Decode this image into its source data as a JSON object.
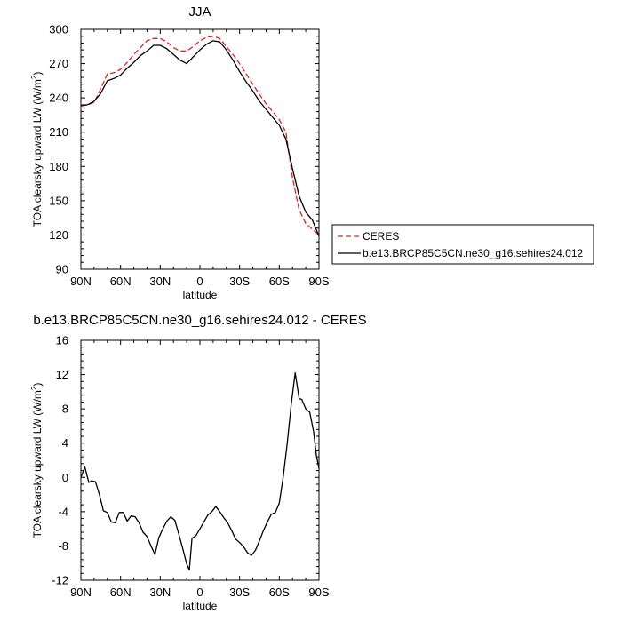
{
  "chart_data": [
    {
      "type": "line",
      "title": "JJA",
      "xlabel": "latitude",
      "ylabel": "TOA clearsky upward LW (W/m²)",
      "ylabel_parts": {
        "main": "TOA clearsky upward LW (W/m",
        "sup": "2",
        "close": ")"
      },
      "xlim": [
        -90,
        90
      ],
      "ylim": [
        90,
        300
      ],
      "xtick_values": [
        -90,
        -60,
        -30,
        0,
        30,
        60,
        90
      ],
      "xtick_labels": [
        "90N",
        "60N",
        "30N",
        "0",
        "30S",
        "60S",
        "90S"
      ],
      "ytick_values": [
        90,
        120,
        150,
        180,
        210,
        240,
        270,
        300
      ],
      "ytick_labels": [
        "90",
        "120",
        "150",
        "180",
        "210",
        "240",
        "270",
        "300"
      ],
      "grid": false,
      "legend_position": "right",
      "series": [
        {
          "name": "CERES",
          "color": "#e02020",
          "dash": "dashed",
          "x": [
            -90,
            -85,
            -80,
            -75,
            -70,
            -65,
            -60,
            -55,
            -50,
            -45,
            -40,
            -35,
            -30,
            -25,
            -20,
            -15,
            -10,
            -5,
            0,
            5,
            10,
            15,
            20,
            25,
            30,
            35,
            40,
            45,
            50,
            55,
            60,
            65,
            70,
            75,
            80,
            85,
            90
          ],
          "y": [
            234,
            234,
            236,
            248,
            261,
            262,
            265,
            271,
            278,
            284,
            290,
            292,
            292,
            289,
            284,
            281,
            281,
            285,
            290,
            293,
            294,
            292,
            285,
            278,
            270,
            261,
            252,
            243,
            235,
            228,
            221,
            210,
            170,
            142,
            130,
            125,
            120
          ]
        },
        {
          "name": "b.e13.BRCP85C5CN.ne30_g16.sehires24.012",
          "color": "#000000",
          "dash": "solid",
          "x": [
            -90,
            -85,
            -80,
            -75,
            -70,
            -65,
            -60,
            -55,
            -50,
            -45,
            -40,
            -35,
            -30,
            -25,
            -20,
            -15,
            -10,
            -5,
            0,
            5,
            10,
            15,
            20,
            25,
            30,
            35,
            40,
            45,
            50,
            55,
            60,
            65,
            70,
            75,
            80,
            85,
            90
          ],
          "y": [
            233,
            234,
            237,
            244,
            255,
            257,
            260,
            266,
            271,
            277,
            281,
            286,
            286,
            283,
            278,
            273,
            270,
            276,
            282,
            287,
            290,
            289,
            282,
            273,
            263,
            254,
            246,
            237,
            230,
            223,
            216,
            204,
            178,
            154,
            140,
            133,
            119
          ]
        }
      ]
    },
    {
      "type": "line",
      "title": "b.e13.BRCP85C5CN.ne30_g16.sehires24.012 - CERES",
      "xlabel": "latitude",
      "ylabel": "TOA clearsky upward LW (W/m²)",
      "ylabel_parts": {
        "main": "TOA clearsky upward LW (W/m",
        "sup": "2",
        "close": ")"
      },
      "xlim": [
        -90,
        90
      ],
      "ylim": [
        -12,
        16
      ],
      "xtick_values": [
        -90,
        -60,
        -30,
        0,
        30,
        60,
        90
      ],
      "xtick_labels": [
        "90N",
        "60N",
        "30N",
        "0",
        "30S",
        "60S",
        "90S"
      ],
      "ytick_values": [
        -12,
        -8,
        -4,
        0,
        4,
        8,
        12,
        16
      ],
      "ytick_labels": [
        "-12",
        "-8",
        "-4",
        "0",
        "4",
        "8",
        "12",
        "16"
      ],
      "grid": false,
      "series": [
        {
          "color": "#000000",
          "dash": "solid",
          "x": [
            -90,
            -87,
            -84,
            -82,
            -79,
            -76,
            -73,
            -70,
            -67,
            -64,
            -61,
            -58,
            -55,
            -52,
            -49,
            -46,
            -43,
            -40,
            -37,
            -34,
            -31,
            -28,
            -25,
            -22,
            -19,
            -16,
            -13,
            -10,
            -8,
            -6,
            -3,
            0,
            3,
            6,
            9,
            12,
            15,
            18,
            21,
            24,
            27,
            30,
            33,
            36,
            39,
            42,
            45,
            48,
            51,
            54,
            57,
            60,
            63,
            66,
            69,
            72,
            75,
            77,
            80,
            83,
            86,
            88,
            90
          ],
          "y": [
            0,
            1.2,
            -0.6,
            -0.4,
            -0.5,
            -2,
            -3.9,
            -4.1,
            -5.2,
            -5.3,
            -4.1,
            -4.1,
            -5.1,
            -4.5,
            -4.6,
            -5.3,
            -6.4,
            -6.9,
            -8,
            -9,
            -7,
            -6,
            -5.1,
            -4.6,
            -5,
            -6.6,
            -8.3,
            -10.1,
            -10.8,
            -7.1,
            -6.8,
            -6,
            -5.2,
            -4.4,
            -4,
            -3.4,
            -4,
            -4.7,
            -5.3,
            -6.2,
            -7.2,
            -7.6,
            -8.1,
            -8.8,
            -9.1,
            -8.5,
            -7.4,
            -6.2,
            -5.2,
            -4.3,
            -4.1,
            -3,
            0.1,
            4,
            8.5,
            12.2,
            9.2,
            9.1,
            8,
            7.6,
            5.3,
            2.6,
            1
          ]
        }
      ]
    }
  ]
}
